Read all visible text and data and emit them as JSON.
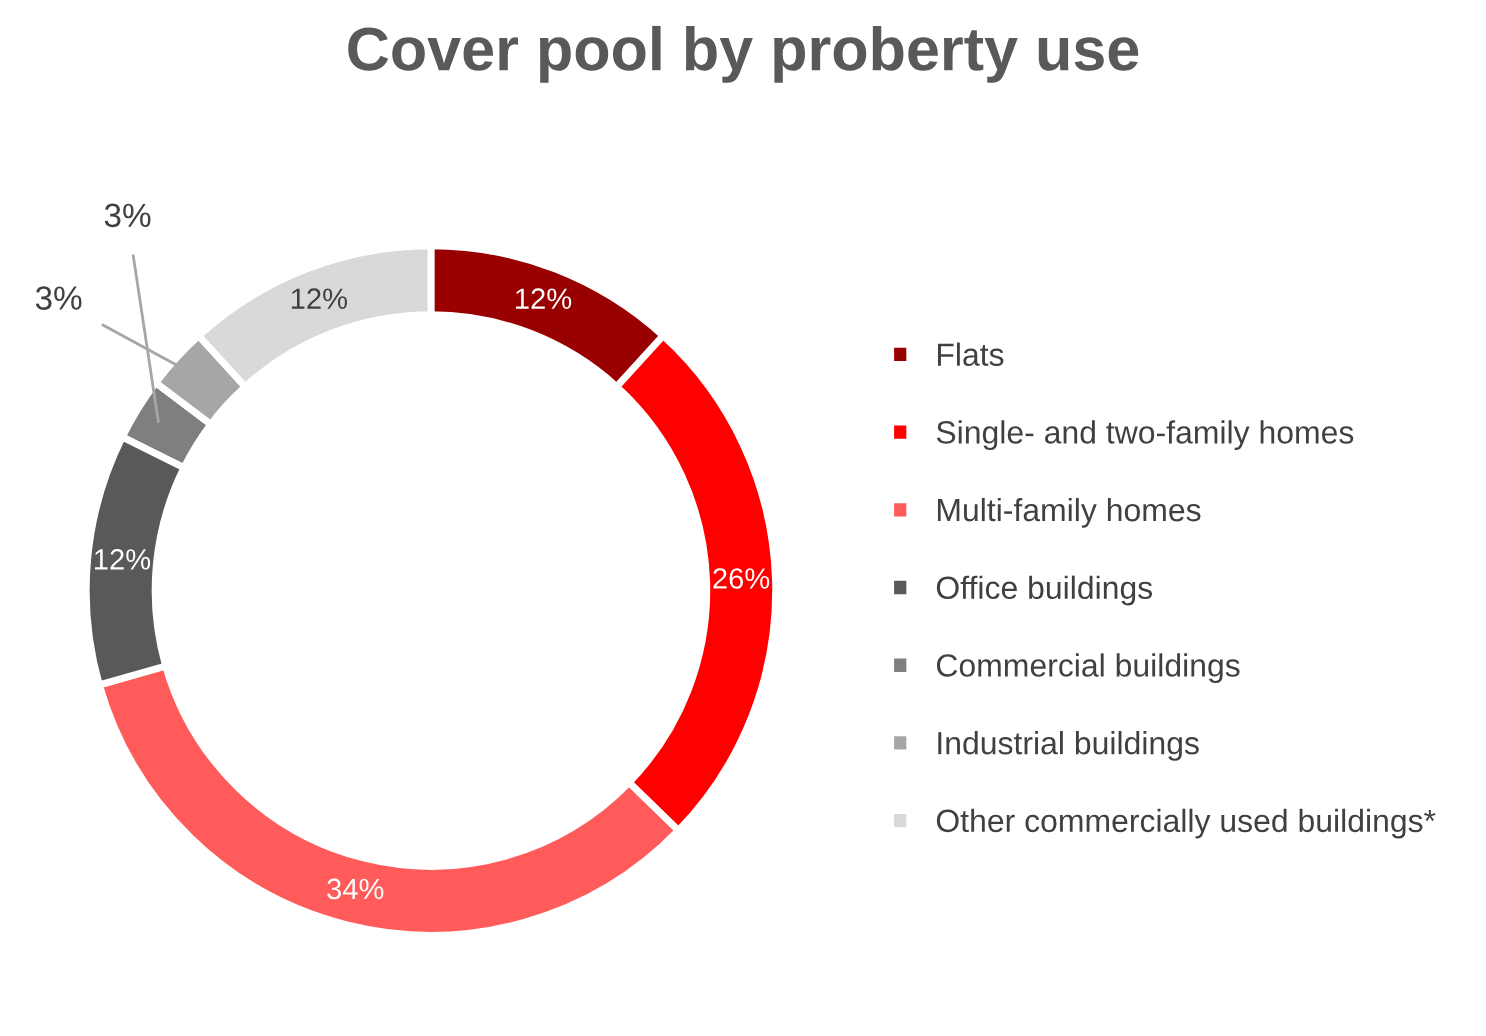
{
  "chart_data": {
    "type": "donut",
    "title": "Cover pool by proberty use",
    "categories": [
      "Flats",
      "Single- and two-family homes",
      "Multi-family homes",
      "Office buildings",
      "Commercial buildings",
      "Industrial buildings",
      "Other commercially used buildings*"
    ],
    "values": [
      12,
      26,
      34,
      12,
      3,
      3,
      12
    ],
    "colors": [
      "#990000",
      "#ff0000",
      "#ff5b5b",
      "#595959",
      "#7f7f7f",
      "#a6a6a6",
      "#d9d9d9"
    ],
    "value_labels": [
      "12%",
      "26%",
      "34%",
      "12%",
      "3%",
      "3%",
      "12%"
    ],
    "legend": "right"
  }
}
